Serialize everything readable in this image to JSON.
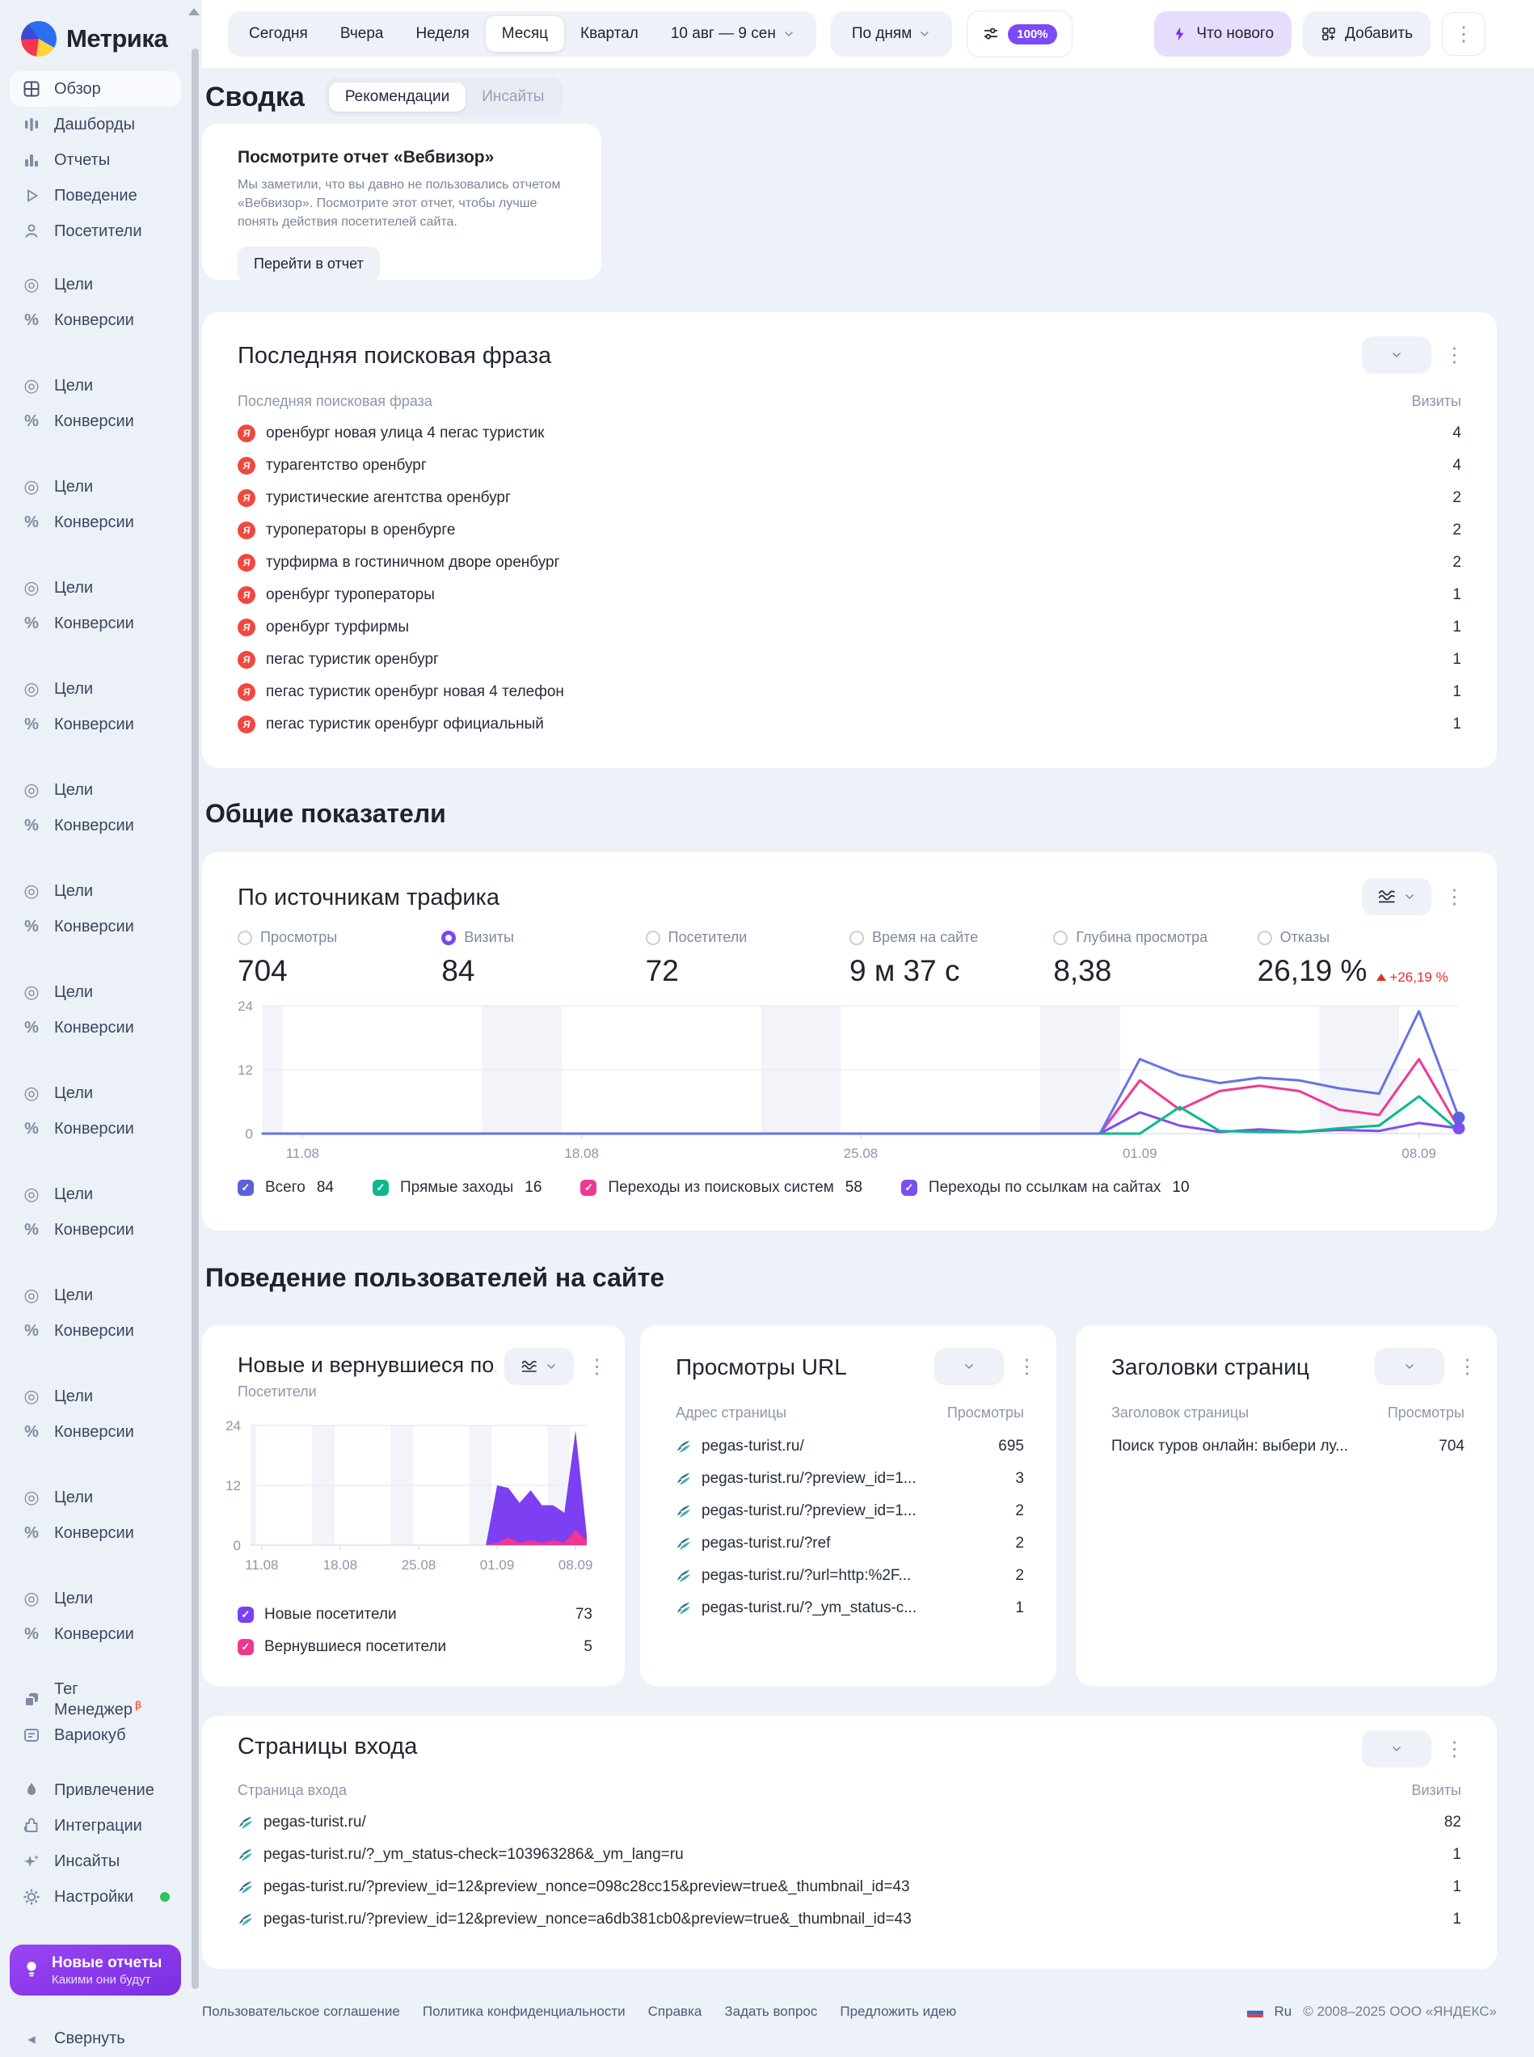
{
  "sidebar": {
    "logo": "Метрика",
    "top_items": [
      {
        "label": "Обзор",
        "active": true
      },
      {
        "label": "Дашборды"
      },
      {
        "label": "Отчеты"
      },
      {
        "label": "Поведение"
      },
      {
        "label": "Посетители"
      }
    ],
    "goal_groups": [
      {
        "goals": "Цели",
        "conversions": "Конверсии"
      },
      {
        "goals": "Цели",
        "conversions": "Конверсии"
      },
      {
        "goals": "Цели",
        "conversions": "Конверсии"
      },
      {
        "goals": "Цели",
        "conversions": "Конверсии"
      },
      {
        "goals": "Цели",
        "conversions": "Конверсии"
      },
      {
        "goals": "Цели",
        "conversions": "Конверсии"
      },
      {
        "goals": "Цели",
        "conversions": "Конверсии"
      },
      {
        "goals": "Цели",
        "conversions": "Конверсии"
      },
      {
        "goals": "Цели",
        "conversions": "Конверсии"
      },
      {
        "goals": "Цели",
        "conversions": "Конверсии"
      },
      {
        "goals": "Цели",
        "conversions": "Конверсии"
      },
      {
        "goals": "Цели",
        "conversions": "Конверсии"
      },
      {
        "goals": "Цели",
        "conversions": "Конверсии"
      },
      {
        "goals": "Цели",
        "conversions": "Конверсии"
      }
    ],
    "tools": {
      "tag_manager": "Тег Менеджер",
      "tag_manager_badge": "β",
      "variocube": "Вариокуб"
    },
    "bottom_items": [
      {
        "label": "Привлечение"
      },
      {
        "label": "Интеграции"
      },
      {
        "label": "Инсайты"
      },
      {
        "label": "Настройки"
      }
    ],
    "promo": {
      "title": "Новые отчеты",
      "subtitle": "Какими они будут"
    },
    "collapse_label": "Свернуть"
  },
  "topbar": {
    "date_tabs": [
      {
        "label": "Сегодня"
      },
      {
        "label": "Вчера"
      },
      {
        "label": "Неделя"
      },
      {
        "label": "Месяц",
        "active": true
      },
      {
        "label": "Квартал"
      }
    ],
    "date_range": "10 авг — 9 сен",
    "granularity": "По дням",
    "sampling": "100%",
    "whats_new": "Что нового",
    "add": "Добавить"
  },
  "summary": {
    "title": "Сводка",
    "tabs": [
      {
        "label": "Рекомендации",
        "active": true
      },
      {
        "label": "Инсайты"
      }
    ]
  },
  "recommendation": {
    "title": "Посмотрите отчет «Вебвизор»",
    "body": "Мы заметили, что вы давно не пользовались отчетом «Вебвизор». Посмотрите этот отчет, чтобы лучше понять действия посетителей сайта.",
    "button": "Перейти в отчет"
  },
  "search_phrases": {
    "title": "Последняя поисковая фраза",
    "col_phrase": "Последняя поисковая фраза",
    "col_visits": "Визиты",
    "rows": [
      {
        "phrase": "оренбург новая улица 4 пегас туристик",
        "visits": "4"
      },
      {
        "phrase": "турагентство оренбург",
        "visits": "4"
      },
      {
        "phrase": "туристические агентства оренбург",
        "visits": "2"
      },
      {
        "phrase": "туроператоры в оренбурге",
        "visits": "2"
      },
      {
        "phrase": "турфирма в гостиничном дворе оренбург",
        "visits": "2"
      },
      {
        "phrase": "оренбург туроператоры",
        "visits": "1"
      },
      {
        "phrase": "оренбург турфирмы",
        "visits": "1"
      },
      {
        "phrase": "пегас туристик оренбург",
        "visits": "1"
      },
      {
        "phrase": "пегас туристик оренбург новая 4 телефон",
        "visits": "1"
      },
      {
        "phrase": "пегас туристик оренбург официальный",
        "visits": "1"
      }
    ]
  },
  "sections": {
    "general": "Общие показатели",
    "behavior": "Поведение пользователей на сайте"
  },
  "traffic": {
    "title": "По источникам трафика",
    "metrics": [
      {
        "label": "Просмотры",
        "value": "704",
        "selected": false
      },
      {
        "label": "Визиты",
        "value": "84",
        "selected": true
      },
      {
        "label": "Посетители",
        "value": "72",
        "selected": false
      },
      {
        "label": "Время на сайте",
        "value": "9 м 37 с",
        "selected": false
      },
      {
        "label": "Глубина просмотра",
        "value": "8,38",
        "selected": false
      },
      {
        "label": "Отказы",
        "value": "26,19 %",
        "selected": false,
        "delta": "+26,19 %"
      }
    ],
    "legend": [
      {
        "label": "Всего",
        "value": "84",
        "color": "#5a62d8"
      },
      {
        "label": "Прямые заходы",
        "value": "16",
        "color": "#0cb88c"
      },
      {
        "label": "Переходы из поисковых систем",
        "value": "58",
        "color": "#ee3a94"
      },
      {
        "label": "Переходы по ссылкам на сайтах",
        "value": "10",
        "color": "#7b4ff0"
      }
    ]
  },
  "visitors_card": {
    "title": "Новые и вернувшиеся по...",
    "subtitle": "Посетители",
    "legend": [
      {
        "label": "Новые посетители",
        "value": "73",
        "color": "#7c3ff2"
      },
      {
        "label": "Вернувшиеся посетители",
        "value": "5",
        "color": "#f0368f"
      }
    ]
  },
  "url_views": {
    "title": "Просмотры URL",
    "col_url": "Адрес страницы",
    "col_views": "Просмотры",
    "rows": [
      {
        "url": "pegas-turist.ru/",
        "views": "695"
      },
      {
        "url": "pegas-turist.ru/?preview_id=1...",
        "views": "3"
      },
      {
        "url": "pegas-turist.ru/?preview_id=1...",
        "views": "2"
      },
      {
        "url": "pegas-turist.ru/?ref",
        "views": "2"
      },
      {
        "url": "pegas-turist.ru/?url=http:%2F...",
        "views": "2"
      },
      {
        "url": "pegas-turist.ru/?_ym_status-c...",
        "views": "1"
      }
    ]
  },
  "page_titles": {
    "title": "Заголовки страниц",
    "col_title": "Заголовок страницы",
    "col_views": "Просмотры",
    "rows": [
      {
        "title": "Поиск туров онлайн: выбери лу...",
        "views": "704"
      }
    ]
  },
  "entry_pages": {
    "title": "Страницы входа",
    "col_page": "Страница входа",
    "col_visits": "Визиты",
    "rows": [
      {
        "page": "pegas-turist.ru/",
        "visits": "82"
      },
      {
        "page": "pegas-turist.ru/?_ym_status-check=103963286&_ym_lang=ru",
        "visits": "1"
      },
      {
        "page": "pegas-turist.ru/?preview_id=12&preview_nonce=098c28cc15&preview=true&_thumbnail_id=43",
        "visits": "1"
      },
      {
        "page": "pegas-turist.ru/?preview_id=12&preview_nonce=a6db381cb0&preview=true&_thumbnail_id=43",
        "visits": "1"
      }
    ]
  },
  "footer": {
    "links": [
      {
        "label": "Пользовательское соглашение"
      },
      {
        "label": "Политика конфиденциальности"
      },
      {
        "label": "Справка"
      },
      {
        "label": "Задать вопрос"
      },
      {
        "label": "Предложить идею"
      }
    ],
    "lang": "Ru",
    "copyright": "© 2008–2025 ООО «ЯНДЕКС»"
  },
  "chart_data": [
    {
      "type": "line",
      "title": "По источникам трафика",
      "ylabel": "Визиты",
      "ylim": [
        0,
        24
      ],
      "yticks": [
        0,
        12,
        24
      ],
      "days": 31,
      "x_labels": [
        "11.08",
        "18.08",
        "25.08",
        "01.09",
        "08.09"
      ],
      "x_label_days": [
        1,
        8,
        15,
        22,
        29
      ],
      "weekend_bands": [
        [
          0,
          0.5
        ],
        [
          5.5,
          7.5
        ],
        [
          12.5,
          14.5
        ],
        [
          19.5,
          21.5
        ],
        [
          26.5,
          28.5
        ]
      ],
      "grid": true,
      "legend_position": "bottom",
      "series": [
        {
          "name": "Всего",
          "total": 84,
          "color": "#6473e6",
          "end_dot": true,
          "values": [
            0,
            0,
            0,
            0,
            0,
            0,
            0,
            0,
            0,
            0,
            0,
            0,
            0,
            0,
            0,
            0,
            0,
            0,
            0,
            0,
            0,
            0,
            14,
            11,
            9.5,
            10.5,
            10,
            8.5,
            7.5,
            23,
            3
          ]
        },
        {
          "name": "Прямые заходы",
          "total": 16,
          "color": "#0cb88c",
          "end_dot": false,
          "values": [
            0,
            0,
            0,
            0,
            0,
            0,
            0,
            0,
            0,
            0,
            0,
            0,
            0,
            0,
            0,
            0,
            0,
            0,
            0,
            0,
            0,
            0,
            0,
            5,
            0.5,
            0.3,
            0.3,
            1,
            1.5,
            7,
            0.5
          ]
        },
        {
          "name": "Переходы из поисковых систем",
          "total": 58,
          "color": "#ee3a94",
          "end_dot": false,
          "values": [
            0,
            0,
            0,
            0,
            0,
            0,
            0,
            0,
            0,
            0,
            0,
            0,
            0,
            0,
            0,
            0,
            0,
            0,
            0,
            0,
            0,
            0,
            10,
            4.5,
            8,
            9,
            8,
            4.5,
            3.5,
            14,
            1
          ]
        },
        {
          "name": "Переходы по ссылкам на сайтах",
          "total": 10,
          "color": "#7b4ff0",
          "end_dot": true,
          "values": [
            0,
            0,
            0,
            0,
            0,
            0,
            0,
            0,
            0,
            0,
            0,
            0,
            0,
            0,
            0,
            0,
            0,
            0,
            0,
            0,
            0,
            0,
            4,
            1.5,
            0.3,
            0.8,
            0.3,
            0.7,
            0.5,
            2,
            1
          ]
        }
      ]
    },
    {
      "type": "area",
      "title": "Новые и вернувшиеся посетители",
      "ylabel": "Посетители",
      "ylim": [
        0,
        24
      ],
      "yticks": [
        0,
        12,
        24
      ],
      "days": 31,
      "x_labels": [
        "11.08",
        "18.08",
        "25.08",
        "01.09",
        "08.09"
      ],
      "x_label_days": [
        1,
        8,
        15,
        22,
        29
      ],
      "weekend_bands": [
        [
          0,
          0.5
        ],
        [
          5.5,
          7.5
        ],
        [
          12.5,
          14.5
        ],
        [
          19.5,
          21.5
        ],
        [
          26.5,
          28.5
        ]
      ],
      "grid": true,
      "stacked": true,
      "legend_position": "bottom",
      "series": [
        {
          "name": "Новые посетители",
          "total": 73,
          "color": "#7c3ff2",
          "values": [
            0,
            0,
            0,
            0,
            0,
            0,
            0,
            0,
            0,
            0,
            0,
            0,
            0,
            0,
            0,
            0,
            0,
            0,
            0,
            0,
            0,
            0,
            11.5,
            10,
            8,
            10,
            7.5,
            7,
            6,
            20,
            1
          ]
        },
        {
          "name": "Вернувшиеся посетители",
          "total": 5,
          "color": "#f0368f",
          "values": [
            0,
            0,
            0,
            0,
            0,
            0,
            0,
            0,
            0,
            0,
            0,
            0,
            0,
            0,
            0,
            0,
            0,
            0,
            0,
            0,
            0,
            0,
            0.5,
            1.5,
            0.5,
            1,
            0.5,
            1,
            0.5,
            3,
            1
          ]
        }
      ]
    }
  ]
}
